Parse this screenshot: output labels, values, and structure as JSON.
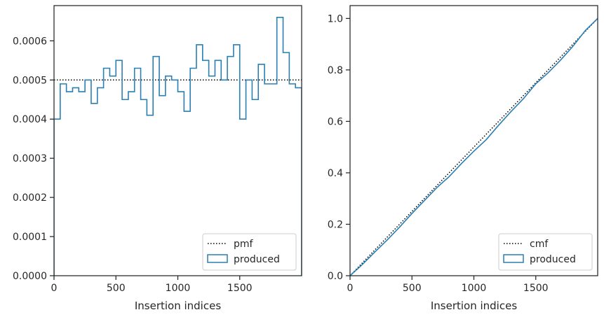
{
  "colors": {
    "produced": "#2a7fb4",
    "reference": "#000000",
    "axes": "#262626",
    "legend_border": "#cccccc"
  },
  "chart_data": [
    {
      "type": "histogram-step",
      "title": "",
      "xlabel": "Insertion indices",
      "ylabel": "",
      "xlim": [
        0,
        2000
      ],
      "ylim": [
        0,
        0.00069
      ],
      "grid": false,
      "legend_placement": "lower-right",
      "xtick_labels": [
        "0",
        "500",
        "1000",
        "1500"
      ],
      "xtick_values": [
        0,
        500,
        1000,
        1500
      ],
      "ytick_labels": [
        "0.0000",
        "0.0001",
        "0.0002",
        "0.0003",
        "0.0004",
        "0.0005",
        "0.0006"
      ],
      "ytick_values": [
        0,
        0.0001,
        0.0002,
        0.0003,
        0.0004,
        0.0005,
        0.0006
      ],
      "series": [
        {
          "name": "pmf",
          "style": "dotted",
          "values": [
            0.0005,
            0.0005
          ]
        },
        {
          "name": "produced",
          "style": "step",
          "bin_edges": [
            0,
            50,
            100,
            150,
            200,
            250,
            300,
            350,
            400,
            450,
            500,
            550,
            600,
            650,
            700,
            750,
            800,
            850,
            900,
            950,
            1000,
            1050,
            1100,
            1150,
            1200,
            1250,
            1300,
            1350,
            1400,
            1450,
            1500,
            1550,
            1600,
            1650,
            1700,
            1750,
            1800,
            1850,
            1900,
            1950,
            2000
          ],
          "values": [
            0.0004,
            0.00049,
            0.00047,
            0.00048,
            0.00047,
            0.0005,
            0.00044,
            0.00048,
            0.00053,
            0.00051,
            0.00055,
            0.00045,
            0.00047,
            0.00053,
            0.00045,
            0.00041,
            0.00056,
            0.00046,
            0.00051,
            0.0005,
            0.00047,
            0.00042,
            0.00053,
            0.00059,
            0.00055,
            0.00051,
            0.00055,
            0.0005,
            0.00056,
            0.00059,
            0.0004,
            0.0005,
            0.00045,
            0.00054,
            0.00049,
            0.00049,
            0.00066,
            0.00057,
            0.00049,
            0.00048
          ]
        }
      ]
    },
    {
      "type": "line",
      "title": "",
      "xlabel": "Insertion indices",
      "ylabel": "",
      "xlim": [
        0,
        2000
      ],
      "ylim": [
        0,
        1.05
      ],
      "grid": false,
      "legend_placement": "lower-right",
      "xtick_labels": [
        "0",
        "500",
        "1000",
        "1500"
      ],
      "xtick_values": [
        0,
        500,
        1000,
        1500
      ],
      "ytick_labels": [
        "0.0",
        "0.2",
        "0.4",
        "0.6",
        "0.8",
        "1.0"
      ],
      "ytick_values": [
        0,
        0.2,
        0.4,
        0.6,
        0.8,
        1.0
      ],
      "series": [
        {
          "name": "cmf",
          "style": "dotted",
          "x": [
            0,
            2000
          ],
          "values": [
            0,
            1.0
          ]
        },
        {
          "name": "produced",
          "style": "step",
          "x": [
            0,
            100,
            200,
            300,
            400,
            500,
            600,
            700,
            800,
            900,
            1000,
            1100,
            1200,
            1300,
            1400,
            1500,
            1600,
            1700,
            1800,
            1900,
            2000
          ],
          "values": [
            0,
            0.044,
            0.092,
            0.139,
            0.189,
            0.242,
            0.292,
            0.342,
            0.385,
            0.436,
            0.484,
            0.529,
            0.585,
            0.638,
            0.688,
            0.746,
            0.789,
            0.838,
            0.892,
            0.953,
            1.0
          ]
        }
      ]
    }
  ]
}
